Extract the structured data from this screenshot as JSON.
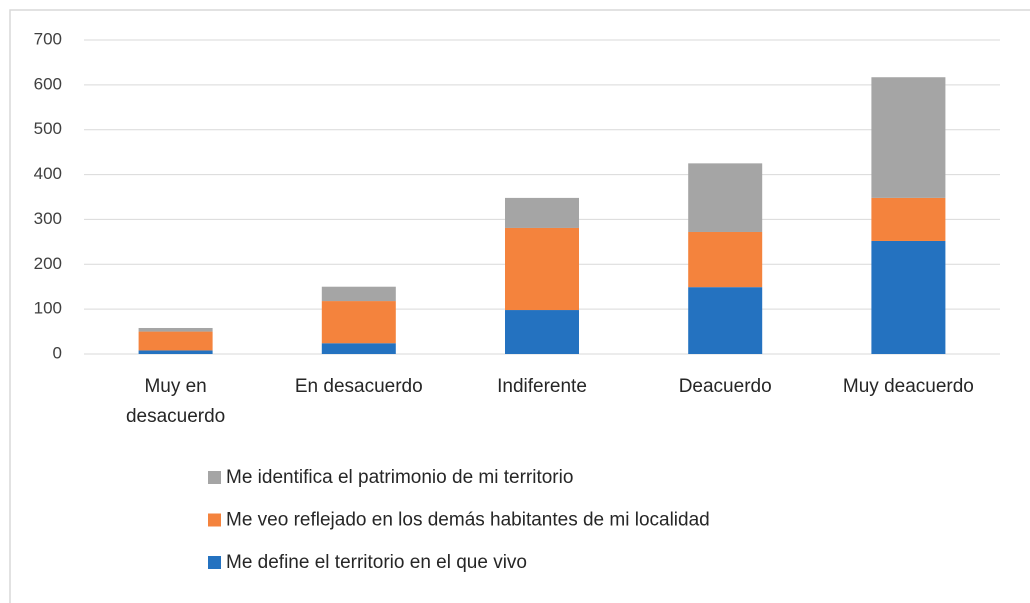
{
  "chart_data": {
    "type": "stacked_bar",
    "categories": [
      "Muy en desacuerdo",
      "En desacuerdo",
      "Indiferente",
      "Deacuerdo",
      "Muy deacuerdo"
    ],
    "series": [
      {
        "name": "Me define el territorio en el que vivo",
        "color": "#2472c0",
        "values": [
          8,
          24,
          98,
          149,
          252
        ]
      },
      {
        "name": "Me veo reflejado en los demás habitantes de mi localidad",
        "color": "#f4833d",
        "values": [
          42,
          94,
          183,
          123,
          96
        ]
      },
      {
        "name": "Me identifica el patrimonio de mi territorio",
        "color": "#a5a5a5",
        "values": [
          8,
          32,
          67,
          153,
          269
        ]
      }
    ],
    "ylim": [
      0,
      700
    ],
    "yticks": [
      0,
      100,
      200,
      300,
      400,
      500,
      600,
      700
    ],
    "grid": true
  }
}
